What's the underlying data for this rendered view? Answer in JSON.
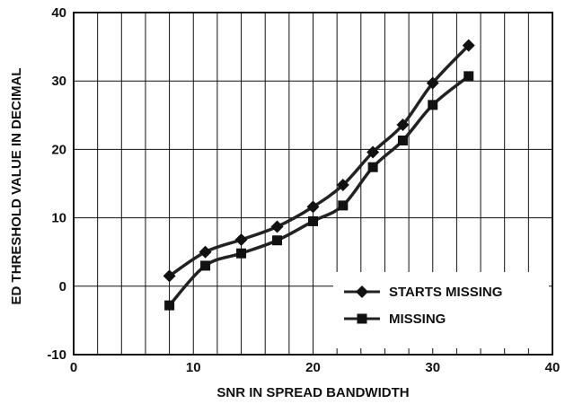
{
  "chart_data": {
    "type": "line",
    "title": "",
    "xlabel": "SNR IN SPREAD BANDWIDTH",
    "ylabel": "ED THRESHOLD VALUE IN DECIMAL",
    "xlim": [
      0,
      40
    ],
    "ylim": [
      -10,
      40
    ],
    "x_ticks": [
      0,
      10,
      20,
      30,
      40
    ],
    "y_ticks": [
      -10,
      0,
      10,
      20,
      30,
      40
    ],
    "x_tick_labels": [
      "0",
      "10",
      "20",
      "30",
      "40"
    ],
    "y_tick_labels": [
      "-10",
      "0",
      "10",
      "20",
      "30",
      "40"
    ],
    "grid": true,
    "legend_position": "bottom-right",
    "series": [
      {
        "name": "STARTS MISSING",
        "marker": "diamond",
        "x": [
          8,
          11,
          14,
          17,
          20,
          22.5,
          25,
          27.5,
          30,
          33
        ],
        "y": [
          1.5,
          5.0,
          6.8,
          8.7,
          11.6,
          14.8,
          19.6,
          23.6,
          29.7,
          35.2
        ]
      },
      {
        "name": "MISSING",
        "marker": "square",
        "x": [
          8,
          11,
          14,
          17,
          20,
          22.5,
          25,
          27.5,
          30,
          33
        ],
        "y": [
          -2.8,
          3.0,
          4.8,
          6.7,
          9.5,
          11.8,
          17.4,
          21.3,
          26.5,
          30.7
        ]
      }
    ]
  }
}
